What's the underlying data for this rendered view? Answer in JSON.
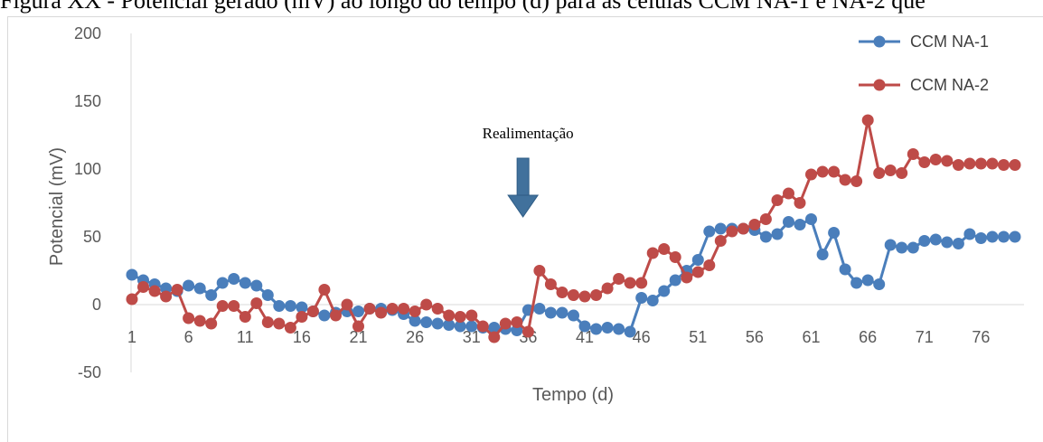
{
  "caption": "Figura XX - Potencial gerado (mV) ao longo do tempo (d) para as células CCM NA-1 e NA-2 que",
  "chart_data": {
    "type": "line",
    "title": "",
    "xlabel": "Tempo (d)",
    "ylabel": "Potencial (mV)",
    "ylim": [
      -50,
      200
    ],
    "yticks": [
      -50,
      0,
      50,
      100,
      150,
      200
    ],
    "xticks": [
      1,
      6,
      11,
      16,
      21,
      26,
      31,
      36,
      41,
      46,
      51,
      56,
      61,
      66,
      71,
      76
    ],
    "xlim": [
      1,
      79
    ],
    "grid": false,
    "legend_position": "top-right",
    "annotation": {
      "text": "Realimentação",
      "x": 35.5,
      "arrow": "down"
    },
    "x": [
      1,
      2,
      3,
      4,
      5,
      6,
      7,
      8,
      9,
      10,
      11,
      12,
      13,
      14,
      15,
      16,
      17,
      18,
      19,
      20,
      21,
      22,
      23,
      24,
      25,
      26,
      27,
      28,
      29,
      30,
      31,
      32,
      33,
      34,
      35,
      36,
      37,
      38,
      39,
      40,
      41,
      42,
      43,
      44,
      45,
      46,
      47,
      48,
      49,
      50,
      51,
      52,
      53,
      54,
      55,
      56,
      57,
      58,
      59,
      60,
      61,
      62,
      63,
      64,
      65,
      66,
      67,
      68,
      69,
      70,
      71,
      72,
      73,
      74,
      75,
      76,
      77,
      78,
      79
    ],
    "series": [
      {
        "name": "CCM NA-1",
        "color": "#4a7ebb",
        "values": [
          22,
          18,
          15,
          12,
          10,
          14,
          12,
          7,
          16,
          19,
          16,
          14,
          7,
          -1,
          -1,
          -2,
          -5,
          -8,
          -6,
          -5,
          -5,
          -3,
          -3,
          -4,
          -7,
          -12,
          -13,
          -14,
          -15,
          -16,
          -16,
          -17,
          -17,
          -18,
          -19,
          -4,
          -3,
          -6,
          -6,
          -8,
          -16,
          -18,
          -17,
          -18,
          -20,
          5,
          3,
          10,
          18,
          25,
          33,
          54,
          56,
          56,
          56,
          55,
          50,
          52,
          61,
          59,
          63,
          37,
          53,
          26,
          16,
          18,
          15,
          44,
          42,
          42,
          47,
          48,
          46,
          45,
          52,
          49,
          50,
          50,
          50
        ]
      },
      {
        "name": "CCM NA-2",
        "color": "#be4b48",
        "values": [
          4,
          13,
          10,
          6,
          11,
          -10,
          -12,
          -14,
          -1,
          -1,
          -9,
          1,
          -13,
          -14,
          -17,
          -9,
          -5,
          11,
          -8,
          0,
          -16,
          -3,
          -6,
          -3,
          -3,
          -5,
          0,
          -3,
          -8,
          -9,
          -8,
          -16,
          -24,
          -14,
          -13,
          -20,
          25,
          15,
          9,
          7,
          6,
          7,
          12,
          19,
          16,
          16,
          38,
          41,
          35,
          20,
          24,
          29,
          47,
          54,
          56,
          59,
          63,
          77,
          82,
          75,
          96,
          98,
          98,
          92,
          91,
          136,
          97,
          99,
          97,
          111,
          105,
          107,
          106,
          103,
          104,
          104,
          104,
          103,
          103
        ]
      }
    ]
  }
}
